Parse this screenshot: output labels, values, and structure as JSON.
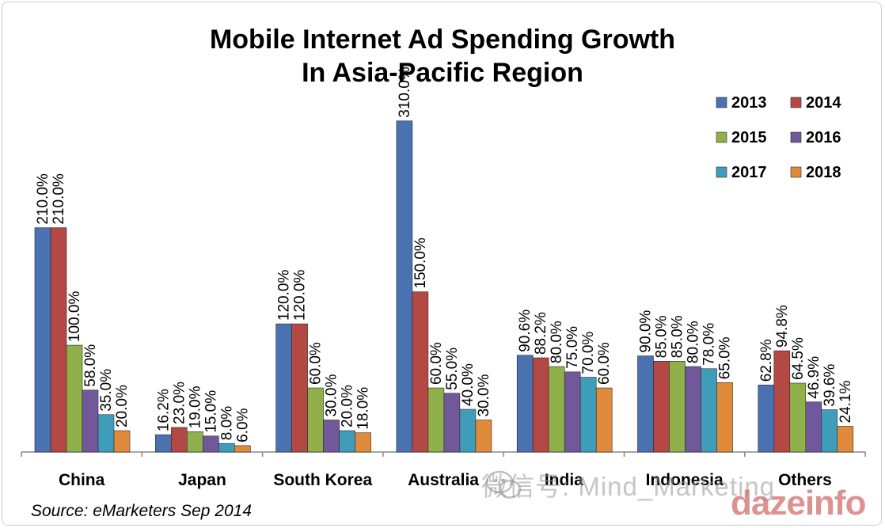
{
  "chart_data": {
    "type": "bar",
    "title": [
      "Mobile Internet Ad Spending Growth",
      "In Asia-Pacific Region"
    ],
    "categories": [
      "China",
      "Japan",
      "South Korea",
      "Australia",
      "India",
      "Indonesia",
      "Others"
    ],
    "series": [
      {
        "name": "2013",
        "color": "#4a72b0",
        "values": [
          210.0,
          16.2,
          120.0,
          310.0,
          90.6,
          90.0,
          62.8
        ],
        "labels": [
          "210.0%",
          "16.2%",
          "120.0%",
          "310.0%",
          "90.6%",
          "90.0%",
          "62.8%"
        ]
      },
      {
        "name": "2014",
        "color": "#b34845",
        "values": [
          210.0,
          23.0,
          120.0,
          150.0,
          88.2,
          85.0,
          94.8
        ],
        "labels": [
          "210.0%",
          "23.0%",
          "120.0%",
          "150.0%",
          "88.2%",
          "85.0%",
          "94.8%"
        ]
      },
      {
        "name": "2015",
        "color": "#8fb04a",
        "values": [
          100.0,
          19.0,
          60.0,
          60.0,
          80.0,
          85.0,
          64.5
        ],
        "labels": [
          "100.0%",
          "19.0%",
          "60.0%",
          "60.0%",
          "80.0%",
          "85.0%",
          "64.5%"
        ]
      },
      {
        "name": "2016",
        "color": "#71589a",
        "values": [
          58.0,
          15.0,
          30.0,
          55.0,
          75.0,
          80.0,
          46.9
        ],
        "labels": [
          "58.0%",
          "15.0%",
          "30.0%",
          "55.0%",
          "75.0%",
          "80.0%",
          "46.9%"
        ]
      },
      {
        "name": "2017",
        "color": "#3f9dba",
        "values": [
          35.0,
          8.0,
          20.0,
          40.0,
          70.0,
          78.0,
          39.6
        ],
        "labels": [
          "35.0%",
          "8.0%",
          "20.0%",
          "40.0%",
          "70.0%",
          "78.0%",
          "39.6%"
        ]
      },
      {
        "name": "2018",
        "color": "#e08a3c",
        "values": [
          20.0,
          6.0,
          18.0,
          30.0,
          60.0,
          65.0,
          24.1
        ],
        "labels": [
          "20.0%",
          "6.0%",
          "18.0%",
          "30.0%",
          "60.0%",
          "65.0%",
          "24.1%"
        ]
      }
    ],
    "ylim": [
      0,
      315
    ],
    "grid": false,
    "legend": "top-right",
    "xlabel": "",
    "ylabel": ""
  },
  "source": "Source:  eMarketers Sep 2014",
  "watermark": "微信号: Mind_Marketing",
  "brand": "dazeinfo"
}
